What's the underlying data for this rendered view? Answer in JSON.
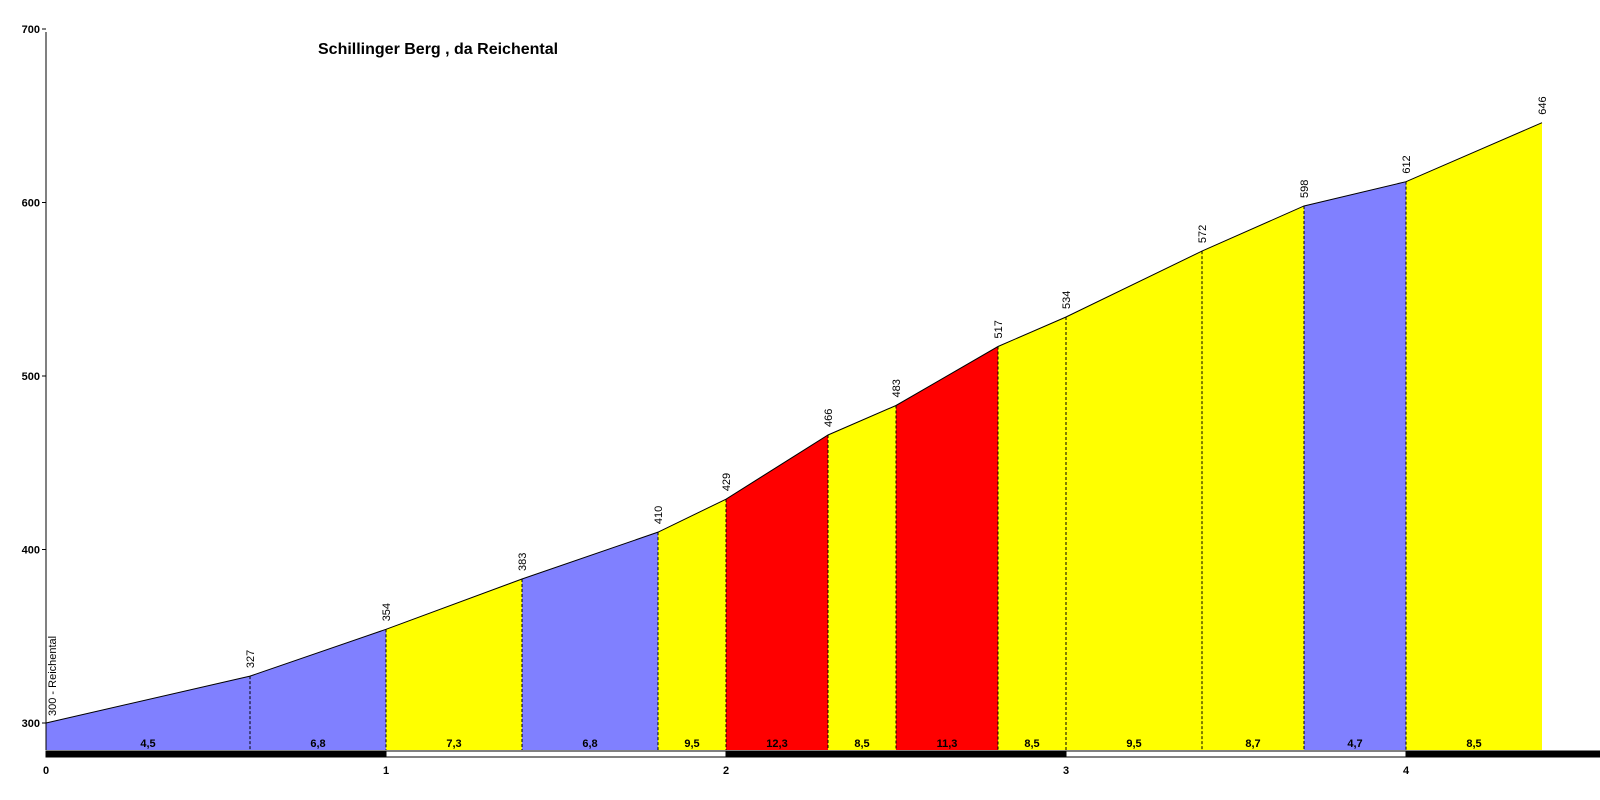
{
  "chart_data": {
    "type": "area",
    "title": "Schillinger Berg , da Reichental",
    "start_label": "300 - Reichental",
    "ylim": [
      290,
      700
    ],
    "yticks": [
      300,
      400,
      500,
      600,
      700
    ],
    "xlim": [
      0,
      4.7
    ],
    "xticks": [
      0,
      1,
      2,
      3,
      4
    ],
    "points": [
      {
        "x": 0,
        "y": 300
      },
      {
        "x": 0.6,
        "y": 327
      },
      {
        "x": 1.0,
        "y": 354
      },
      {
        "x": 1.4,
        "y": 383
      },
      {
        "x": 1.8,
        "y": 410
      },
      {
        "x": 2.0,
        "y": 429
      },
      {
        "x": 2.3,
        "y": 466
      },
      {
        "x": 2.5,
        "y": 483
      },
      {
        "x": 2.8,
        "y": 517
      },
      {
        "x": 3.0,
        "y": 534
      },
      {
        "x": 3.4,
        "y": 572
      },
      {
        "x": 3.7,
        "y": 598
      },
      {
        "x": 4.0,
        "y": 612
      },
      {
        "x": 4.4,
        "y": 646
      }
    ],
    "segments": [
      {
        "gradient": "4,5",
        "color": "#8080ff"
      },
      {
        "gradient": "6,8",
        "color": "#8080ff"
      },
      {
        "gradient": "7,3",
        "color": "#ffff00"
      },
      {
        "gradient": "6,8",
        "color": "#8080ff"
      },
      {
        "gradient": "9,5",
        "color": "#ffff00"
      },
      {
        "gradient": "12,3",
        "color": "#ff0000"
      },
      {
        "gradient": "8,5",
        "color": "#ffff00"
      },
      {
        "gradient": "11,3",
        "color": "#ff0000"
      },
      {
        "gradient": "8,5",
        "color": "#ffff00"
      },
      {
        "gradient": "9,5",
        "color": "#ffff00"
      },
      {
        "gradient": "8,7",
        "color": "#ffff00"
      },
      {
        "gradient": "4,7",
        "color": "#8080ff"
      },
      {
        "gradient": "8,5",
        "color": "#ffff00"
      }
    ]
  }
}
